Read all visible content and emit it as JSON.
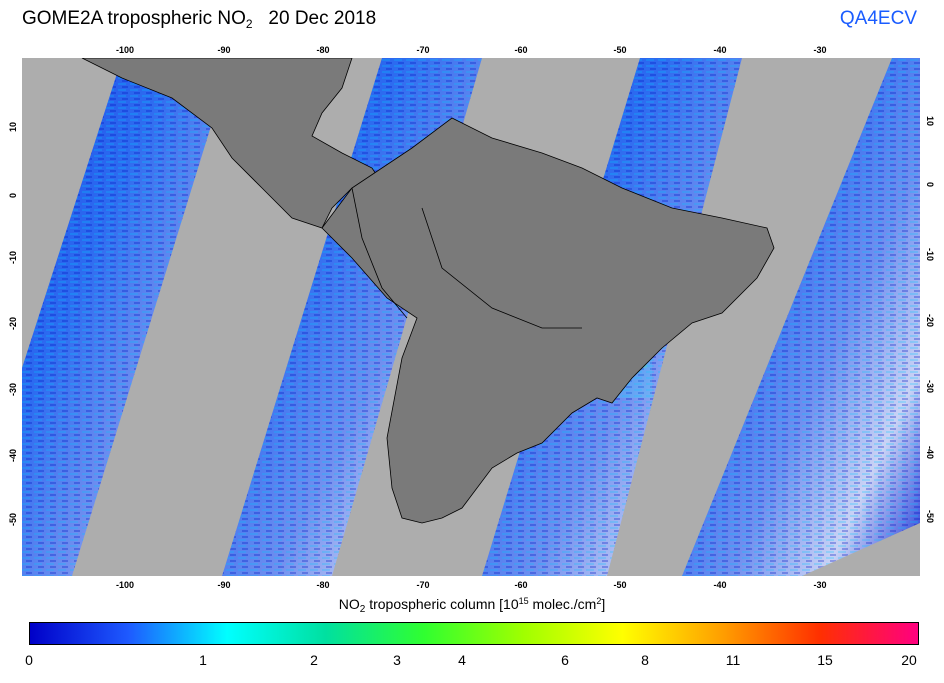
{
  "header": {
    "title_main": "GOME2A tropospheric NO",
    "title_sub": "2",
    "title_date": "20 Dec 2018",
    "brand": "QA4ECV"
  },
  "map": {
    "lon_ticks": [
      "-100",
      "-90",
      "-80",
      "-70",
      "-60",
      "-50",
      "-40",
      "-30"
    ],
    "lat_ticks": [
      "10",
      "0",
      "-10",
      "-20",
      "-30",
      "-40",
      "-50"
    ],
    "land_color": "#7a7a7a",
    "no_data_color": "#adadad",
    "graticule_shown": false
  },
  "colorbar": {
    "label_prefix": "NO",
    "label_sub": "2",
    "label_mid": " tropospheric column [10",
    "label_sup": "15",
    "label_mid2": " molec./cm",
    "label_sup2": "2",
    "label_end": "]",
    "labels": [
      "0",
      "1",
      "2",
      "3",
      "4",
      "6",
      "8",
      "11",
      "15",
      "20"
    ],
    "colors": [
      "#0000c8",
      "#1e5aff",
      "#00ffff",
      "#00e0a0",
      "#30ff30",
      "#a0ff00",
      "#ffff00",
      "#ffa000",
      "#ff3000",
      "#ff0080"
    ]
  }
}
